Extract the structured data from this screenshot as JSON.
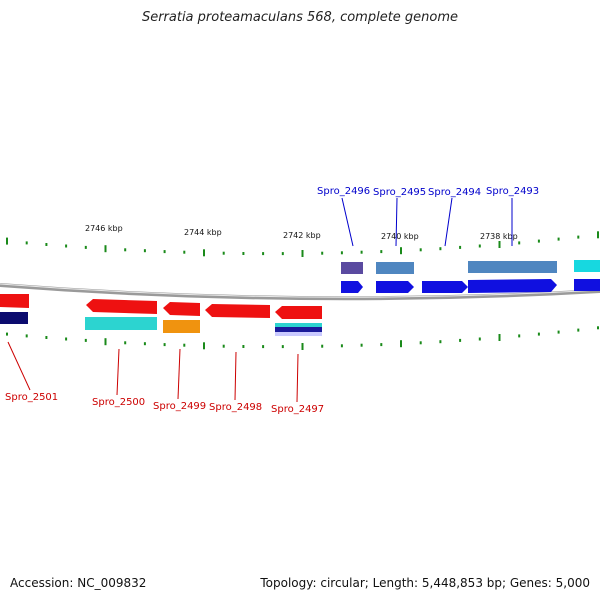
{
  "title": "Serratia proteamaculans 568, complete genome",
  "footer": {
    "accession": "Accession: NC_009832",
    "summary": "Topology: circular; Length: 5,448,853 bp; Genes: 5,000"
  },
  "colors": {
    "backbone": "#9a9a9a",
    "tick": "#1a8a1a",
    "forward_label": "#0000cc",
    "reverse_label": "#cc0000"
  },
  "scale_labels": [
    "2746 kbp",
    "2744 kbp",
    "2742 kbp",
    "2740 kbp",
    "2738 kbp"
  ],
  "genes_top": [
    {
      "name": "Spro_2496"
    },
    {
      "name": "Spro_2495"
    },
    {
      "name": "Spro_2494"
    },
    {
      "name": "Spro_2493"
    }
  ],
  "genes_bottom": [
    {
      "name": "Spro_2501"
    },
    {
      "name": "Spro_2500"
    },
    {
      "name": "Spro_2499"
    },
    {
      "name": "Spro_2498"
    },
    {
      "name": "Spro_2497"
    }
  ]
}
